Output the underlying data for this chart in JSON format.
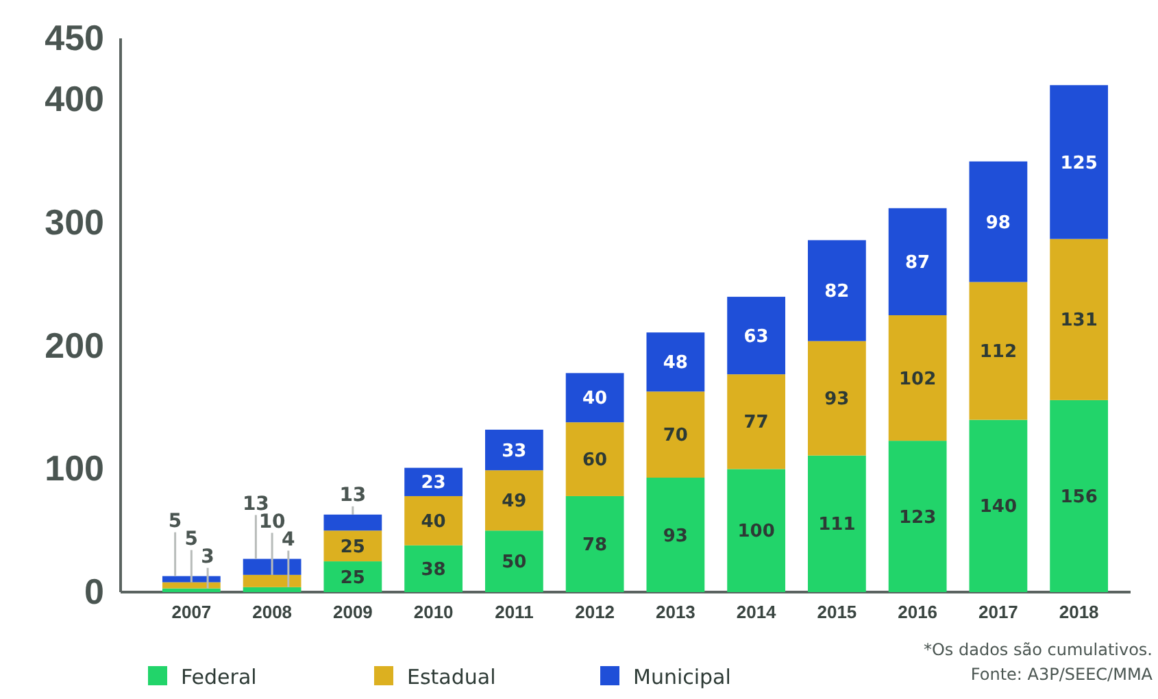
{
  "chart_data": {
    "type": "bar",
    "stacked": true,
    "legend": "bottom left",
    "grid": false,
    "categories": [
      "2007",
      "2008",
      "2009",
      "2010",
      "2011",
      "2012",
      "2013",
      "2014",
      "2015",
      "2016",
      "2017",
      "2018"
    ],
    "series": [
      {
        "name": "Federal",
        "color": "#22d46a",
        "values": [
          3,
          4,
          25,
          38,
          50,
          78,
          93,
          100,
          111,
          123,
          140,
          156
        ],
        "value_labels": [
          null,
          null,
          "25",
          "38",
          "50",
          "78",
          "93",
          "100",
          "111",
          "123",
          "140",
          "156"
        ]
      },
      {
        "name": "Estadual",
        "color": "#dcb020",
        "values": [
          5,
          10,
          25,
          40,
          49,
          60,
          70,
          77,
          93,
          102,
          112,
          131
        ],
        "value_labels": [
          null,
          null,
          "25",
          "40",
          "49",
          "60",
          "70",
          "77",
          "93",
          "102",
          "112",
          "131"
        ]
      },
      {
        "name": "Municipal",
        "color": "#1f4fd8",
        "values": [
          5,
          13,
          13,
          23,
          33,
          40,
          48,
          63,
          82,
          87,
          98,
          125
        ],
        "value_labels": [
          null,
          null,
          null,
          "23",
          "33",
          "40",
          "48",
          "63",
          "82",
          "87",
          "98",
          "125"
        ]
      }
    ],
    "ylim": [
      0,
      450
    ],
    "yticks": [
      0,
      100,
      200,
      300,
      400,
      450
    ],
    "annotations": [
      {
        "text": "5",
        "x": "2007",
        "y": 13
      },
      {
        "text": "5",
        "x": "2007",
        "y": 8
      },
      {
        "text": "3",
        "x": "2007",
        "y": 3
      },
      {
        "text": "13",
        "x": "2008",
        "y": 27
      },
      {
        "text": "10",
        "x": "2008",
        "y": 14
      },
      {
        "text": "4",
        "x": "2008",
        "y": 4
      },
      {
        "text": "13",
        "x": "2009",
        "y": 63
      },
      "*Os dados são cumulativos.",
      "Fonte: A3P/SEEC/MMA"
    ]
  }
}
